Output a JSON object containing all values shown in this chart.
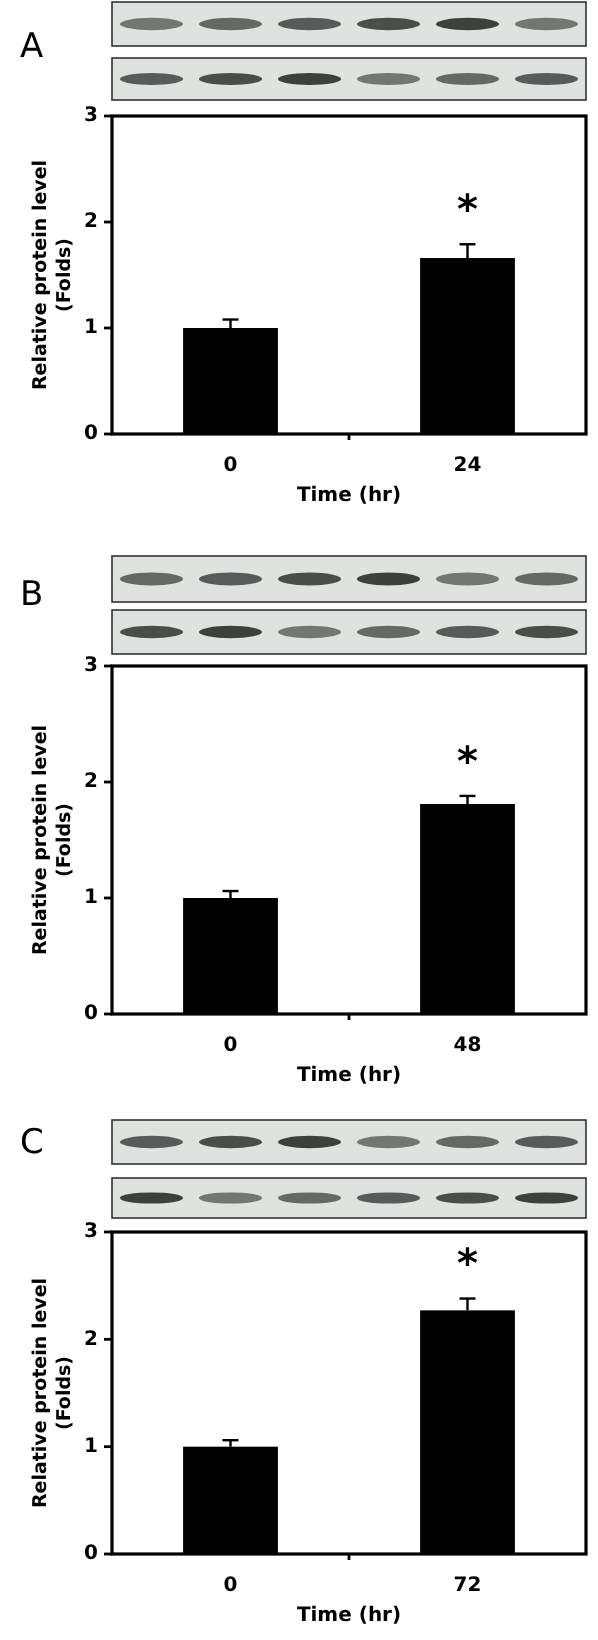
{
  "chart_data": [
    {
      "type": "bar",
      "title": "A",
      "ylabel": "Relative protein level\n(Folds)",
      "xlabel": "Time (hr)",
      "categories": [
        "0",
        "24"
      ],
      "values": [
        1.0,
        1.66
      ],
      "errors": [
        0.08,
        0.13
      ],
      "color": "#000000",
      "ylim": [
        0,
        3
      ],
      "yticks": [
        0,
        1,
        2,
        3
      ],
      "annotations": [
        "*"
      ]
    },
    {
      "type": "bar",
      "title": "B",
      "ylabel": "Relative protein level\n(Folds)",
      "xlabel": "Time (hr)",
      "categories": [
        "0",
        "48"
      ],
      "values": [
        1.0,
        1.81
      ],
      "errors": [
        0.06,
        0.07
      ],
      "color": "#000000",
      "ylim": [
        0,
        3
      ],
      "yticks": [
        0,
        1,
        2,
        3
      ],
      "annotations": [
        "*"
      ]
    },
    {
      "type": "bar",
      "title": "C",
      "ylabel": "Relative protein level\n(Folds)",
      "xlabel": "Time (hr)",
      "categories": [
        "0",
        "72"
      ],
      "values": [
        1.0,
        2.27
      ],
      "errors": [
        0.06,
        0.11
      ],
      "color": "#000000",
      "ylim": [
        0,
        3
      ],
      "yticks": [
        0,
        1,
        2,
        3
      ],
      "annotations": [
        "*"
      ]
    }
  ]
}
